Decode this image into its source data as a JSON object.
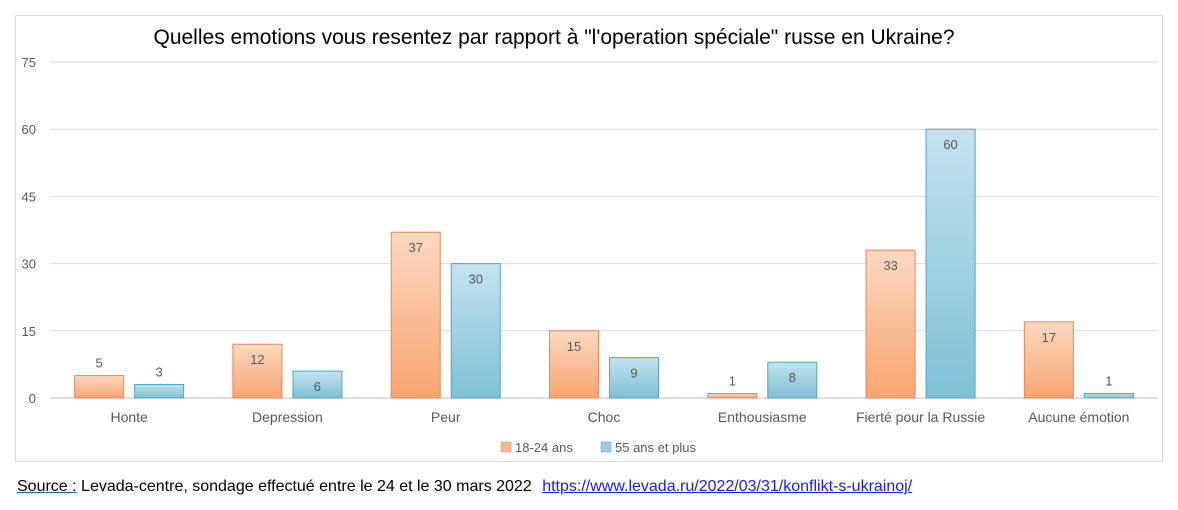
{
  "chart_data": {
    "type": "bar",
    "title": "Quelles emotions vous resentez par rapport à \"l'operation spéciale\" russe en Ukraine?",
    "categories": [
      "Honte",
      "Depression",
      "Peur",
      "Choc",
      "Enthousiasme",
      "Fierté pour la Russie",
      "Aucune émotion"
    ],
    "series": [
      {
        "name": "18-24 ans",
        "values": [
          5,
          12,
          37,
          15,
          1,
          33,
          17
        ],
        "color": "#f8b88c"
      },
      {
        "name": "55 ans et plus",
        "values": [
          3,
          6,
          30,
          9,
          8,
          60,
          1
        ],
        "color": "#9fcfdf"
      }
    ],
    "yticks": [
      0,
      15,
      30,
      45,
      60,
      75
    ],
    "ylim": [
      0,
      75
    ],
    "grid": true,
    "legend": "bottom",
    "xlabel": "",
    "ylabel": ""
  },
  "source": {
    "label": "Source :",
    "text": "Levada-centre, sondage effectué entre le 24 et le 30 mars 2022",
    "link": "https://www.levada.ru/2022/03/31/konflikt-s-ukrainoj/"
  }
}
